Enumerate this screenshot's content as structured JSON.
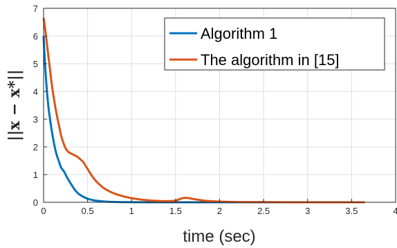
{
  "chart_data": {
    "type": "line",
    "xlabel": "time (sec)",
    "ylabel": "||x − x*||",
    "xlim": [
      0,
      4
    ],
    "ylim": [
      0,
      7
    ],
    "xticks": [
      "0",
      "0.5",
      "1",
      "1.5",
      "2",
      "2.5",
      "3",
      "3.5",
      "4"
    ],
    "yticks": [
      "0",
      "1",
      "2",
      "3",
      "4",
      "5",
      "6",
      "7"
    ],
    "grid": true,
    "legend_position": "top-right",
    "series": [
      {
        "name": "Algorithm 1",
        "color": "#0072BD",
        "x": [
          0,
          0.02,
          0.05,
          0.08,
          0.1,
          0.13,
          0.15,
          0.18,
          0.2,
          0.23,
          0.25,
          0.27,
          0.3,
          0.33,
          0.35,
          0.38,
          0.4,
          0.45,
          0.5,
          0.55,
          0.6,
          0.7,
          0.8,
          0.9,
          1.0,
          1.2,
          1.5,
          2.0,
          2.5,
          3.0,
          3.5,
          3.65
        ],
        "y": [
          6.0,
          4.8,
          3.6,
          2.85,
          2.45,
          1.95,
          1.7,
          1.42,
          1.25,
          1.12,
          1.0,
          0.88,
          0.72,
          0.57,
          0.47,
          0.36,
          0.3,
          0.2,
          0.13,
          0.085,
          0.055,
          0.025,
          0.012,
          0.006,
          0.003,
          0.0,
          0.0,
          0.0,
          0.0,
          0.0,
          0.0,
          0.0
        ]
      },
      {
        "name": "The algorithm in [15]",
        "color": "#D95319",
        "x": [
          0,
          0.02,
          0.05,
          0.08,
          0.1,
          0.13,
          0.15,
          0.18,
          0.2,
          0.23,
          0.25,
          0.28,
          0.3,
          0.33,
          0.35,
          0.38,
          0.4,
          0.45,
          0.5,
          0.55,
          0.6,
          0.65,
          0.7,
          0.8,
          0.9,
          1.0,
          1.1,
          1.2,
          1.3,
          1.4,
          1.5,
          1.55,
          1.6,
          1.65,
          1.7,
          1.8,
          1.9,
          2.0,
          2.2,
          2.5,
          3.0,
          3.5,
          3.65
        ],
        "y": [
          6.65,
          6.2,
          5.4,
          4.6,
          4.1,
          3.5,
          3.15,
          2.7,
          2.4,
          2.1,
          1.95,
          1.82,
          1.78,
          1.73,
          1.7,
          1.65,
          1.6,
          1.45,
          1.2,
          0.95,
          0.75,
          0.6,
          0.48,
          0.32,
          0.22,
          0.15,
          0.1,
          0.07,
          0.05,
          0.04,
          0.06,
          0.12,
          0.16,
          0.15,
          0.12,
          0.07,
          0.04,
          0.025,
          0.01,
          0.005,
          0.0,
          0.0,
          0.0
        ]
      }
    ]
  }
}
